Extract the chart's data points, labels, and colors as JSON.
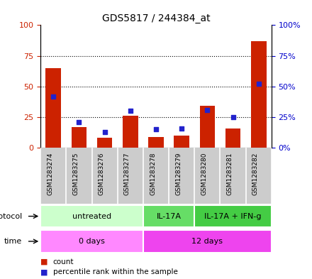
{
  "title": "GDS5817 / 244384_at",
  "samples": [
    "GSM1283274",
    "GSM1283275",
    "GSM1283276",
    "GSM1283277",
    "GSM1283278",
    "GSM1283279",
    "GSM1283280",
    "GSM1283281",
    "GSM1283282"
  ],
  "counts": [
    65,
    17,
    8,
    26,
    9,
    10,
    34,
    16,
    87
  ],
  "percentiles": [
    42,
    21,
    13,
    30,
    15,
    16,
    31,
    25,
    52
  ],
  "protocol_groups": [
    {
      "label": "untreated",
      "start": 0,
      "end": 4,
      "color": "#ccffcc"
    },
    {
      "label": "IL-17A",
      "start": 4,
      "end": 6,
      "color": "#66dd66"
    },
    {
      "label": "IL-17A + IFN-g",
      "start": 6,
      "end": 9,
      "color": "#44cc44"
    }
  ],
  "time_groups": [
    {
      "label": "0 days",
      "start": 0,
      "end": 4,
      "color": "#ff88ff"
    },
    {
      "label": "12 days",
      "start": 4,
      "end": 9,
      "color": "#ee44ee"
    }
  ],
  "ylim_left": [
    0,
    100
  ],
  "ylim_right": [
    0,
    100
  ],
  "yticks_left": [
    0,
    25,
    50,
    75,
    100
  ],
  "yticks_right": [
    0,
    25,
    50,
    75,
    100
  ],
  "bar_color": "#cc2200",
  "dot_color": "#2222cc",
  "bar_width": 0.6,
  "background_color": "#ffffff",
  "left_axis_color": "#cc2200",
  "right_axis_color": "#0000cc",
  "sample_bg_color": "#cccccc",
  "sample_divider_color": "#ffffff"
}
